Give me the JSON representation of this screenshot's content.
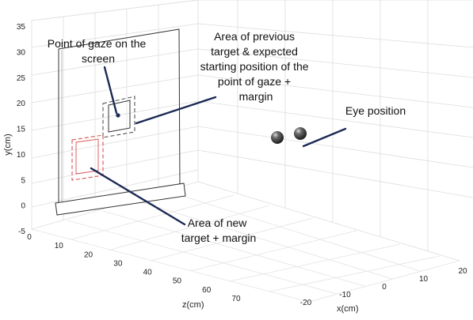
{
  "figure": {
    "y_axis": {
      "label": "y(cm)",
      "ticks": [
        "-5",
        "0",
        "5",
        "10",
        "15",
        "20",
        "25",
        "30",
        "35"
      ]
    },
    "z_axis": {
      "label": "z(cm)",
      "ticks": [
        "0",
        "10",
        "20",
        "30",
        "40",
        "50",
        "60",
        "70"
      ]
    },
    "x_axis": {
      "label": "x(cm)",
      "ticks": [
        "-20",
        "-10",
        "0",
        "10",
        "20"
      ]
    },
    "annotations": {
      "gaze_point": [
        "Point of gaze on the",
        "screen"
      ],
      "previous_target": [
        "Area of previous",
        "target & expected",
        "starting position of the",
        "point of gaze  +",
        "margin"
      ],
      "eye_position": [
        "Eye position"
      ],
      "new_target": [
        "Area of new",
        "target + margin"
      ]
    },
    "colors": {
      "leader_line": "#1b2a55",
      "previous_target_box": "#555555",
      "new_target_box": "#d9534f",
      "eyeball": "#3a3a3a",
      "grid": "#dddddd"
    }
  }
}
